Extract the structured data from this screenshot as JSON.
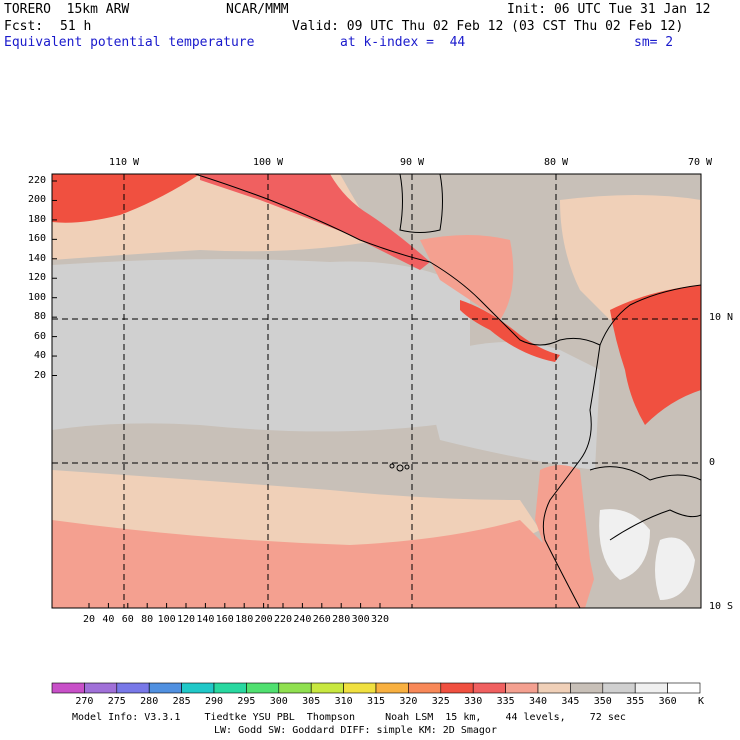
{
  "header": {
    "model": "TORERO  15km ARW",
    "org": "NCAR/MMM",
    "init": "Init: 06 UTC Tue 31 Jan 12",
    "fcst_label": "Fcst:",
    "fcst_value": "51 h",
    "valid": "Valid: 09 UTC Thu 02 Feb 12 (03 CST Thu 02 Feb 12)",
    "field": "Equivalent potential temperature",
    "level": "at k-index =  44",
    "smooth": "sm= 2"
  },
  "axes": {
    "top_lon": [
      "110 W",
      "100 W",
      "90 W",
      "80 W",
      "70 W"
    ],
    "right_lat": [
      "10 N",
      "0",
      "10 S"
    ],
    "left_y": [
      "220",
      "200",
      "180",
      "160",
      "140",
      "120",
      "100",
      "80",
      "60",
      "40",
      "20"
    ],
    "bottom_x": [
      "20",
      "40",
      "60",
      "80",
      "100",
      "120",
      "140",
      "160",
      "180",
      "200",
      "220",
      "240",
      "260",
      "280",
      "300",
      "320"
    ]
  },
  "colorbar": {
    "labels": [
      "270",
      "275",
      "280",
      "285",
      "290",
      "295",
      "300",
      "305",
      "310",
      "315",
      "320",
      "325",
      "330",
      "335",
      "340",
      "345",
      "350",
      "355",
      "360"
    ],
    "unit": "K",
    "colors": [
      "#c850c8",
      "#a070d8",
      "#7878e8",
      "#5090e0",
      "#20c8c8",
      "#28d8a0",
      "#50e070",
      "#90e050",
      "#c8e840",
      "#f0e040",
      "#f8b040",
      "#f88858",
      "#f05040",
      "#f06060",
      "#f4a090",
      "#f0d0b8",
      "#c8c0b8",
      "#d0d0d0",
      "#f0f0f0",
      "#ffffff"
    ]
  },
  "field_colors": {
    "gray_dark": "#c8c0b8",
    "gray": "#d0d0d0",
    "light": "#f0d0b8",
    "salmon": "#f4a090",
    "red": "#f06060",
    "red_dark": "#f05040",
    "white": "#f0f0f0",
    "orange": "#f88858"
  },
  "footer": {
    "line1": "Model Info: V3.3.1    Tiedtke YSU PBL  Thompson     Noah LSM  15 km,    44 levels,    72 sec",
    "line2": "LW: Godd SW: Goddard DIFF: simple KM: 2D Smagor"
  }
}
